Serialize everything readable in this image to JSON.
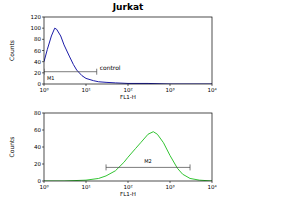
{
  "title": "Jurkat",
  "chart_data": [
    {
      "type": "line",
      "log": "x",
      "color": "#1c1ca8",
      "x_label": "FL1-H",
      "y_label": "Counts",
      "x": [
        1,
        1.2,
        1.5,
        1.8,
        2,
        2.5,
        3,
        4,
        5,
        6,
        8,
        10,
        15,
        20,
        30,
        50,
        100,
        300,
        1000,
        10000
      ],
      "values": [
        40,
        62,
        86,
        100,
        98,
        86,
        70,
        50,
        35,
        25,
        15,
        10,
        6,
        4,
        3,
        2,
        1,
        1,
        0,
        0
      ],
      "xlim": [
        1,
        10000
      ],
      "xticks": [
        {
          "value": 1,
          "label": "10⁰"
        },
        {
          "value": 10,
          "label": "10¹"
        },
        {
          "value": 100,
          "label": "10²"
        },
        {
          "value": 1000,
          "label": "10³"
        },
        {
          "value": 10000,
          "label": "10⁴"
        }
      ],
      "ylim": [
        0,
        120
      ],
      "yticks": [
        0,
        20,
        40,
        60,
        80,
        100,
        120
      ],
      "gates": [
        {
          "label": "M1",
          "range": [
            1,
            18
          ],
          "y": 22,
          "note": "control"
        }
      ]
    },
    {
      "type": "line",
      "log": "x",
      "color": "#33c433",
      "x_label": "FL1-H",
      "y_label": "Counts",
      "x": [
        1,
        3,
        10,
        20,
        30,
        50,
        80,
        100,
        150,
        200,
        300,
        400,
        500,
        700,
        1000,
        1500,
        2000,
        3000,
        5000,
        10000
      ],
      "values": [
        0,
        0,
        1,
        3,
        6,
        12,
        22,
        28,
        38,
        45,
        55,
        58,
        55,
        45,
        30,
        15,
        8,
        3,
        1,
        0
      ],
      "xlim": [
        1,
        10000
      ],
      "xticks": [
        {
          "value": 1,
          "label": "10⁰"
        },
        {
          "value": 10,
          "label": "10¹"
        },
        {
          "value": 100,
          "label": "10²"
        },
        {
          "value": 1000,
          "label": "10³"
        },
        {
          "value": 10000,
          "label": "10⁴"
        }
      ],
      "ylim": [
        0,
        80
      ],
      "yticks": [
        0,
        20,
        40,
        60,
        80
      ],
      "gates": [
        {
          "label": "M2",
          "range": [
            30,
            3000
          ],
          "y": 16
        }
      ]
    }
  ]
}
